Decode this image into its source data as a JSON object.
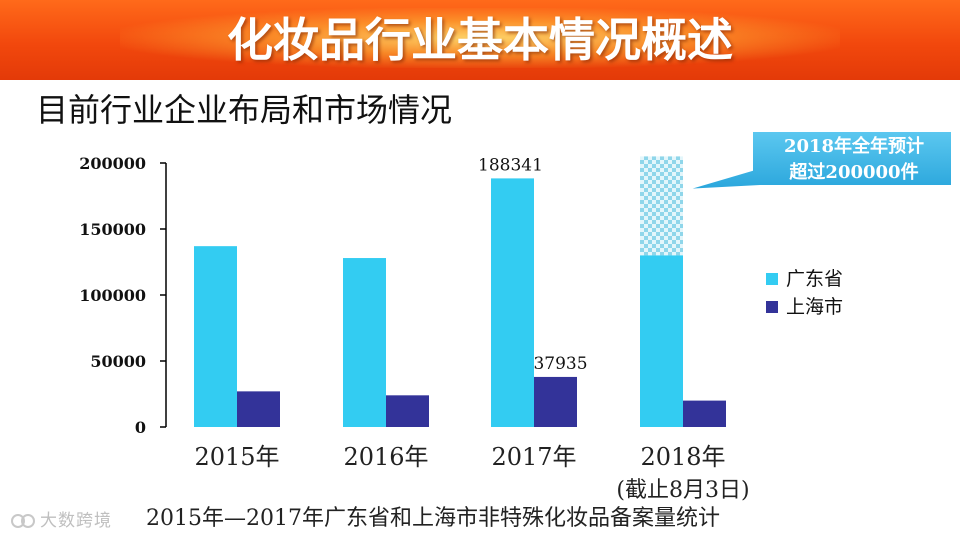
{
  "slide": {
    "title": "化妆品行业基本情况概述",
    "subtitle": "目前行业企业布局和市场情况",
    "footer": "2015年—2017年广东省和上海市非特殊化妆品备案量统计",
    "watermark": "大数跨境"
  },
  "chart_data": {
    "type": "bar",
    "categories": [
      "2015年",
      "2016年",
      "2017年",
      "2018年"
    ],
    "category_sublabels": [
      "",
      "",
      "",
      "(截止8月3日)"
    ],
    "series": [
      {
        "name": "广东省",
        "color": "#33ccf2",
        "values": [
          137000,
          128000,
          188341,
          130000
        ]
      },
      {
        "name": "上海市",
        "color": "#333399",
        "values": [
          27000,
          24000,
          37935,
          20000
        ]
      }
    ],
    "projection": {
      "category": "2018年",
      "series": "广东省",
      "value": 205000,
      "pattern": "checkered-light-blue"
    },
    "data_labels": [
      {
        "category": "2017年",
        "series": "广东省",
        "text": "188341"
      },
      {
        "category": "2017年",
        "series": "上海市",
        "text": "37935"
      }
    ],
    "callout": {
      "lines": [
        "2018年全年预计",
        "超过200000件"
      ],
      "fill": "#3cb8e8"
    },
    "yticks": [
      0,
      50000,
      100000,
      150000,
      200000
    ],
    "ytick_labels": [
      "0",
      "50000",
      "100000",
      "150000",
      "200000"
    ],
    "ylim": [
      0,
      200000
    ],
    "legend_position": "right",
    "grid": false
  }
}
